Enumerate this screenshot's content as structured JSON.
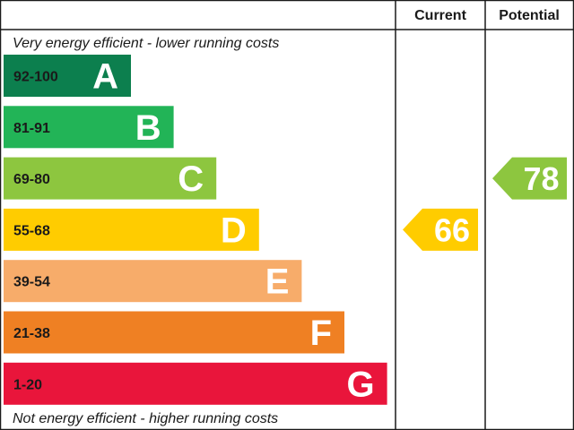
{
  "chart_data": {
    "type": "bar",
    "headers": {
      "current": "Current",
      "potential": "Potential"
    },
    "top_note": "Very energy efficient - lower running costs",
    "bottom_note": "Not energy efficient - higher running costs",
    "bands": [
      {
        "letter": "A",
        "range": "92-100",
        "min": 92,
        "max": 100,
        "color": "#0c7f4e"
      },
      {
        "letter": "B",
        "range": "81-91",
        "min": 81,
        "max": 91,
        "color": "#22b457"
      },
      {
        "letter": "C",
        "range": "69-80",
        "min": 69,
        "max": 80,
        "color": "#8dc63f"
      },
      {
        "letter": "D",
        "range": "55-68",
        "min": 55,
        "max": 68,
        "color": "#ffcc00"
      },
      {
        "letter": "E",
        "range": "39-54",
        "min": 39,
        "max": 54,
        "color": "#f7ac6a"
      },
      {
        "letter": "F",
        "range": "21-38",
        "min": 21,
        "max": 38,
        "color": "#ef8023"
      },
      {
        "letter": "G",
        "range": "1-20",
        "min": 1,
        "max": 20,
        "color": "#e9153b"
      }
    ],
    "current": {
      "value": 66,
      "band": "D",
      "color": "#ffcc00"
    },
    "potential": {
      "value": 78,
      "band": "C",
      "color": "#8dc63f"
    }
  }
}
